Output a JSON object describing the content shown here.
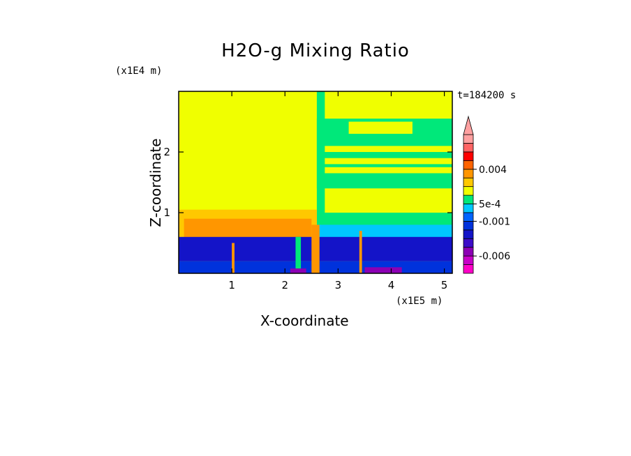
{
  "chart_data": {
    "type": "heatmap",
    "title": "H2O-g Mixing Ratio",
    "xlabel": "X-coordinate",
    "ylabel": "Z-coordinate",
    "x_scale_label": "(x1E5 m)",
    "y_scale_label": "(x1E4 m)",
    "time_label": "t=184200 s",
    "xlim": [
      0,
      5.15
    ],
    "ylim": [
      0,
      3.0
    ],
    "x_ticks": [
      1,
      2,
      3,
      4,
      5
    ],
    "y_ticks": [
      1,
      2
    ],
    "colorbar": {
      "levels": [
        {
          "color": "#ff00c8",
          "label": ""
        },
        {
          "color": "#c800c8",
          "label": ""
        },
        {
          "color": "#8c00b4",
          "label": "-0.006"
        },
        {
          "color": "#3c0cc8",
          "label": ""
        },
        {
          "color": "#1414c8",
          "label": ""
        },
        {
          "color": "#0032dc",
          "label": ""
        },
        {
          "color": "#0064ff",
          "label": "-0.001"
        },
        {
          "color": "#00c8ff",
          "label": ""
        },
        {
          "color": "#00e87a",
          "label": "5e-4"
        },
        {
          "color": "#f0ff00",
          "label": ""
        },
        {
          "color": "#ffc800",
          "label": ""
        },
        {
          "color": "#ff9600",
          "label": ""
        },
        {
          "color": "#ff6400",
          "label": "0.004"
        },
        {
          "color": "#ff0000",
          "label": ""
        },
        {
          "color": "#ff6464",
          "label": ""
        },
        {
          "color": "#ffa0a0",
          "label": ""
        }
      ]
    },
    "regions": [
      {
        "x0": 0,
        "x1": 5.15,
        "z0": 0,
        "z1": 3.0,
        "color": "#f0ff00"
      },
      {
        "x0": 2.6,
        "x1": 2.75,
        "z0": 0.35,
        "z1": 3.0,
        "color": "#00e87a"
      },
      {
        "x0": 2.6,
        "x1": 5.15,
        "z0": 1.4,
        "z1": 2.55,
        "color": "#00e87a"
      },
      {
        "x0": 2.75,
        "x1": 5.15,
        "z0": 2.0,
        "z1": 2.1,
        "color": "#f0ff00"
      },
      {
        "x0": 2.75,
        "x1": 5.15,
        "z0": 1.8,
        "z1": 1.9,
        "color": "#f0ff00"
      },
      {
        "x0": 2.75,
        "x1": 5.15,
        "z0": 1.65,
        "z1": 1.75,
        "color": "#f0ff00"
      },
      {
        "x0": 3.2,
        "x1": 4.4,
        "z0": 2.3,
        "z1": 2.5,
        "color": "#f0ff00"
      },
      {
        "x0": 2.6,
        "x1": 5.15,
        "z0": 0.55,
        "z1": 1.0,
        "color": "#00e87a"
      },
      {
        "x0": 0,
        "x1": 2.6,
        "z0": 0.55,
        "z1": 1.05,
        "color": "#ffc800"
      },
      {
        "x0": 0.1,
        "x1": 2.5,
        "z0": 0.55,
        "z1": 0.9,
        "color": "#ff9600"
      },
      {
        "x0": 2.6,
        "x1": 5.15,
        "z0": 0.5,
        "z1": 0.8,
        "color": "#00c8ff"
      },
      {
        "x0": 0,
        "x1": 5.15,
        "z0": 0.2,
        "z1": 0.6,
        "color": "#1414c8"
      },
      {
        "x0": 0,
        "x1": 5.15,
        "z0": 0,
        "z1": 0.2,
        "color": "#0032dc"
      },
      {
        "x0": 2.5,
        "x1": 2.65,
        "z0": 0,
        "z1": 0.8,
        "color": "#ff9600"
      },
      {
        "x0": 3.4,
        "x1": 3.45,
        "z0": 0,
        "z1": 0.7,
        "color": "#ff9600"
      },
      {
        "x0": 2.2,
        "x1": 2.3,
        "z0": 0,
        "z1": 0.6,
        "color": "#00e87a"
      },
      {
        "x0": 1.0,
        "x1": 1.05,
        "z0": 0,
        "z1": 0.5,
        "color": "#ff9600"
      },
      {
        "x0": 3.5,
        "x1": 4.2,
        "z0": 0,
        "z1": 0.1,
        "color": "#8c00b4"
      },
      {
        "x0": 2.1,
        "x1": 2.4,
        "z0": 0,
        "z1": 0.08,
        "color": "#8c00b4"
      }
    ]
  }
}
